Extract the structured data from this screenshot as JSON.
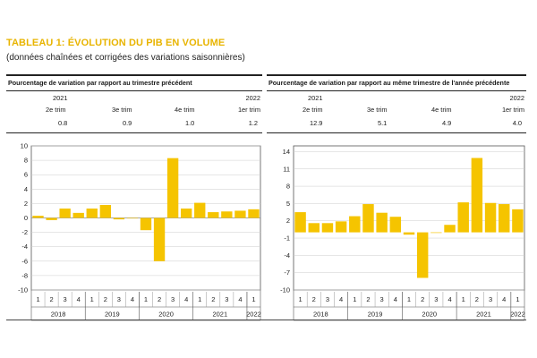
{
  "header": {
    "title": "TABLEAU 1: ÉVOLUTION DU PIB EN VOLUME",
    "subtitle": "(données chaînées et corrigées des variations saisonnières)"
  },
  "colors": {
    "bar": "#f5c400",
    "title": "#e8b400",
    "grid": "#cccccc"
  },
  "panels": [
    {
      "heading": "Pourcentage de variation par rapport au trimestre précédent",
      "summary": {
        "year_left": "2021",
        "year_right": "2022",
        "quarters": [
          "2e trim",
          "3e trim",
          "4e trim",
          "1er trim"
        ],
        "values": [
          "0.8",
          "0.9",
          "1.0",
          "1.2"
        ]
      }
    },
    {
      "heading": "Pourcentage de variation par rapport au même trimestre de l'année précédente",
      "summary": {
        "year_left": "2021",
        "year_right": "2022",
        "quarters": [
          "2e trim",
          "3e trim",
          "4e trim",
          "1er trim"
        ],
        "values": [
          "12.9",
          "5.1",
          "4.9",
          "4.0"
        ]
      }
    }
  ],
  "chart_data": [
    {
      "type": "bar",
      "categories": [
        "1",
        "2",
        "3",
        "4",
        "1",
        "2",
        "3",
        "4",
        "1",
        "2",
        "3",
        "4",
        "1",
        "2",
        "3",
        "4",
        "1"
      ],
      "years": [
        "2018",
        "2019",
        "2020",
        "2021",
        "2022"
      ],
      "year_spans": [
        4,
        4,
        4,
        4,
        1
      ],
      "values": [
        0.3,
        -0.3,
        1.3,
        0.7,
        1.3,
        1.8,
        -0.2,
        0.0,
        -1.7,
        -6.0,
        8.3,
        1.3,
        2.1,
        0.8,
        0.9,
        1.0,
        1.2
      ],
      "ylim": [
        -10,
        10
      ],
      "yticks": [
        10,
        8,
        6,
        4,
        2,
        0,
        -2,
        -4,
        -6,
        -8,
        -10
      ],
      "grid": true
    },
    {
      "type": "bar",
      "categories": [
        "1",
        "2",
        "3",
        "4",
        "1",
        "2",
        "3",
        "4",
        "1",
        "2",
        "3",
        "4",
        "1",
        "2",
        "3",
        "4",
        "1"
      ],
      "years": [
        "2018",
        "2019",
        "2020",
        "2021",
        "2022"
      ],
      "year_spans": [
        4,
        4,
        4,
        4,
        1
      ],
      "values": [
        3.5,
        1.6,
        1.6,
        1.9,
        2.8,
        4.9,
        3.4,
        2.7,
        -0.4,
        -7.9,
        -0.1,
        1.3,
        5.2,
        12.9,
        5.1,
        4.9,
        4.0
      ],
      "ylim": [
        -10,
        15
      ],
      "yticks": [
        14,
        11,
        8,
        5,
        2,
        -1,
        -4,
        -7,
        -10
      ],
      "grid": true
    }
  ]
}
